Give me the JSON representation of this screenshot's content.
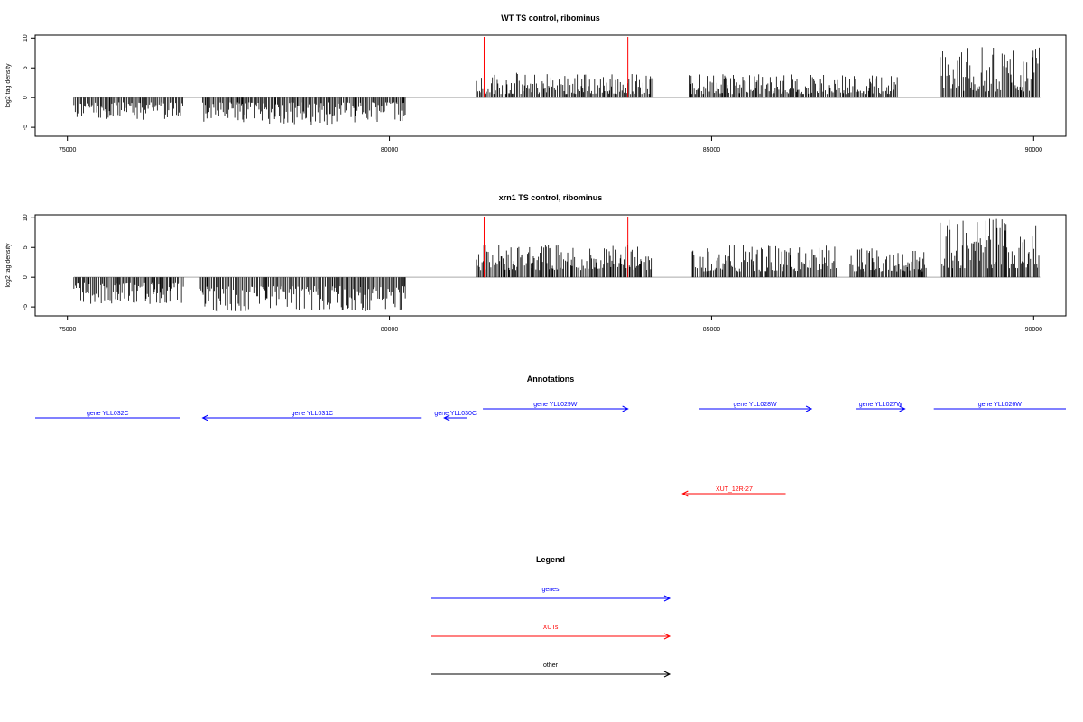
{
  "chart_data": [
    {
      "type": "bar",
      "title": "WT TS control, ribominus",
      "ylabel": "log2 tag density",
      "xlim": [
        74500,
        90500
      ],
      "ylim": [
        -6.5,
        10.5
      ],
      "xticks": [
        75000,
        80000,
        85000,
        90000
      ],
      "yticks": [
        -5,
        0,
        5,
        10
      ],
      "xtick_labels": [
        "75000",
        "80000",
        "85000",
        "90000"
      ],
      "ytick_labels": [
        "-5",
        "0",
        "5",
        "10"
      ],
      "baseline": {
        "x": [
          75100,
          90100
        ],
        "y": 0
      },
      "markers": [
        {
          "x": 81470,
          "y": 10.2,
          "color": "#ff0000"
        },
        {
          "x": 83700,
          "y": 10.2,
          "color": "#ff0000"
        }
      ],
      "segments": [
        {
          "x": [
            75100,
            76800
          ],
          "sign": -1,
          "min": 0.8,
          "max": 3.8
        },
        {
          "x": [
            77100,
            80250
          ],
          "sign": -1,
          "min": 0.8,
          "max": 4.6
        },
        {
          "x": [
            81350,
            84100
          ],
          "sign": 1,
          "min": 0.6,
          "max": 4.2
        },
        {
          "x": [
            84650,
            87900
          ],
          "sign": 1,
          "min": 0.6,
          "max": 4.0
        },
        {
          "x": [
            88550,
            90100
          ],
          "sign": 1,
          "min": 1.0,
          "max": 8.5
        }
      ]
    },
    {
      "type": "bar",
      "title": "xrn1 TS control, ribominus",
      "ylabel": "log2 tag density",
      "xlim": [
        74500,
        90500
      ],
      "ylim": [
        -6.5,
        10.5
      ],
      "xticks": [
        75000,
        80000,
        85000,
        90000
      ],
      "yticks": [
        -5,
        0,
        5,
        10
      ],
      "xtick_labels": [
        "75000",
        "80000",
        "85000",
        "90000"
      ],
      "ytick_labels": [
        "-5",
        "0",
        "5",
        "10"
      ],
      "baseline": {
        "x": [
          75100,
          90100
        ],
        "y": 0
      },
      "markers": [
        {
          "x": 81470,
          "y": 10.2,
          "color": "#ff0000"
        },
        {
          "x": 83700,
          "y": 10.2,
          "color": "#ff0000"
        }
      ],
      "segments": [
        {
          "x": [
            75100,
            76800
          ],
          "sign": -1,
          "min": 1.0,
          "max": 4.5
        },
        {
          "x": [
            77050,
            80250
          ],
          "sign": -1,
          "min": 1.5,
          "max": 5.8
        },
        {
          "x": [
            81350,
            84100
          ],
          "sign": 1,
          "min": 1.2,
          "max": 5.5
        },
        {
          "x": [
            84700,
            86950
          ],
          "sign": 1,
          "min": 1.0,
          "max": 5.5
        },
        {
          "x": [
            87150,
            88350
          ],
          "sign": 1,
          "min": 1.0,
          "max": 5.0
        },
        {
          "x": [
            88550,
            90100
          ],
          "sign": 1,
          "min": 1.5,
          "max": 10.2
        }
      ]
    }
  ],
  "annotations": {
    "title": "Annotations",
    "xlim": [
      74500,
      90500
    ],
    "items": [
      {
        "label": "gene YLL032C",
        "start": 74500,
        "end": 76750,
        "dir": "left",
        "color": "#0000ff",
        "row": 1,
        "arrow": false
      },
      {
        "label": "gene YLL031C",
        "start": 77100,
        "end": 80500,
        "dir": "left",
        "color": "#0000ff",
        "row": 1,
        "arrow": true
      },
      {
        "label": "gene YLL030C",
        "start": 80850,
        "end": 81200,
        "dir": "left",
        "color": "#0000ff",
        "row": 1,
        "arrow": true
      },
      {
        "label": "gene YLL029W",
        "start": 81450,
        "end": 83700,
        "dir": "right",
        "color": "#0000ff",
        "row": 0,
        "arrow": true
      },
      {
        "label": "gene YLL028W",
        "start": 84800,
        "end": 86550,
        "dir": "right",
        "color": "#0000ff",
        "row": 0,
        "arrow": true
      },
      {
        "label": "gene YLL027W",
        "start": 87250,
        "end": 88000,
        "dir": "right",
        "color": "#0000ff",
        "row": 0,
        "arrow": true
      },
      {
        "label": "gene YLL026W",
        "start": 88450,
        "end": 90500,
        "dir": "right",
        "color": "#0000ff",
        "row": 0,
        "arrow": false
      },
      {
        "label": "XUT_12R-27",
        "start": 84550,
        "end": 86150,
        "dir": "left",
        "color": "#ff0000",
        "row": 2,
        "arrow": true
      }
    ]
  },
  "legend": {
    "title": "Legend",
    "items": [
      {
        "label": "genes",
        "color": "#0000ff"
      },
      {
        "label": "XUTs",
        "color": "#ff0000"
      },
      {
        "label": "other",
        "color": "#000000"
      }
    ]
  }
}
